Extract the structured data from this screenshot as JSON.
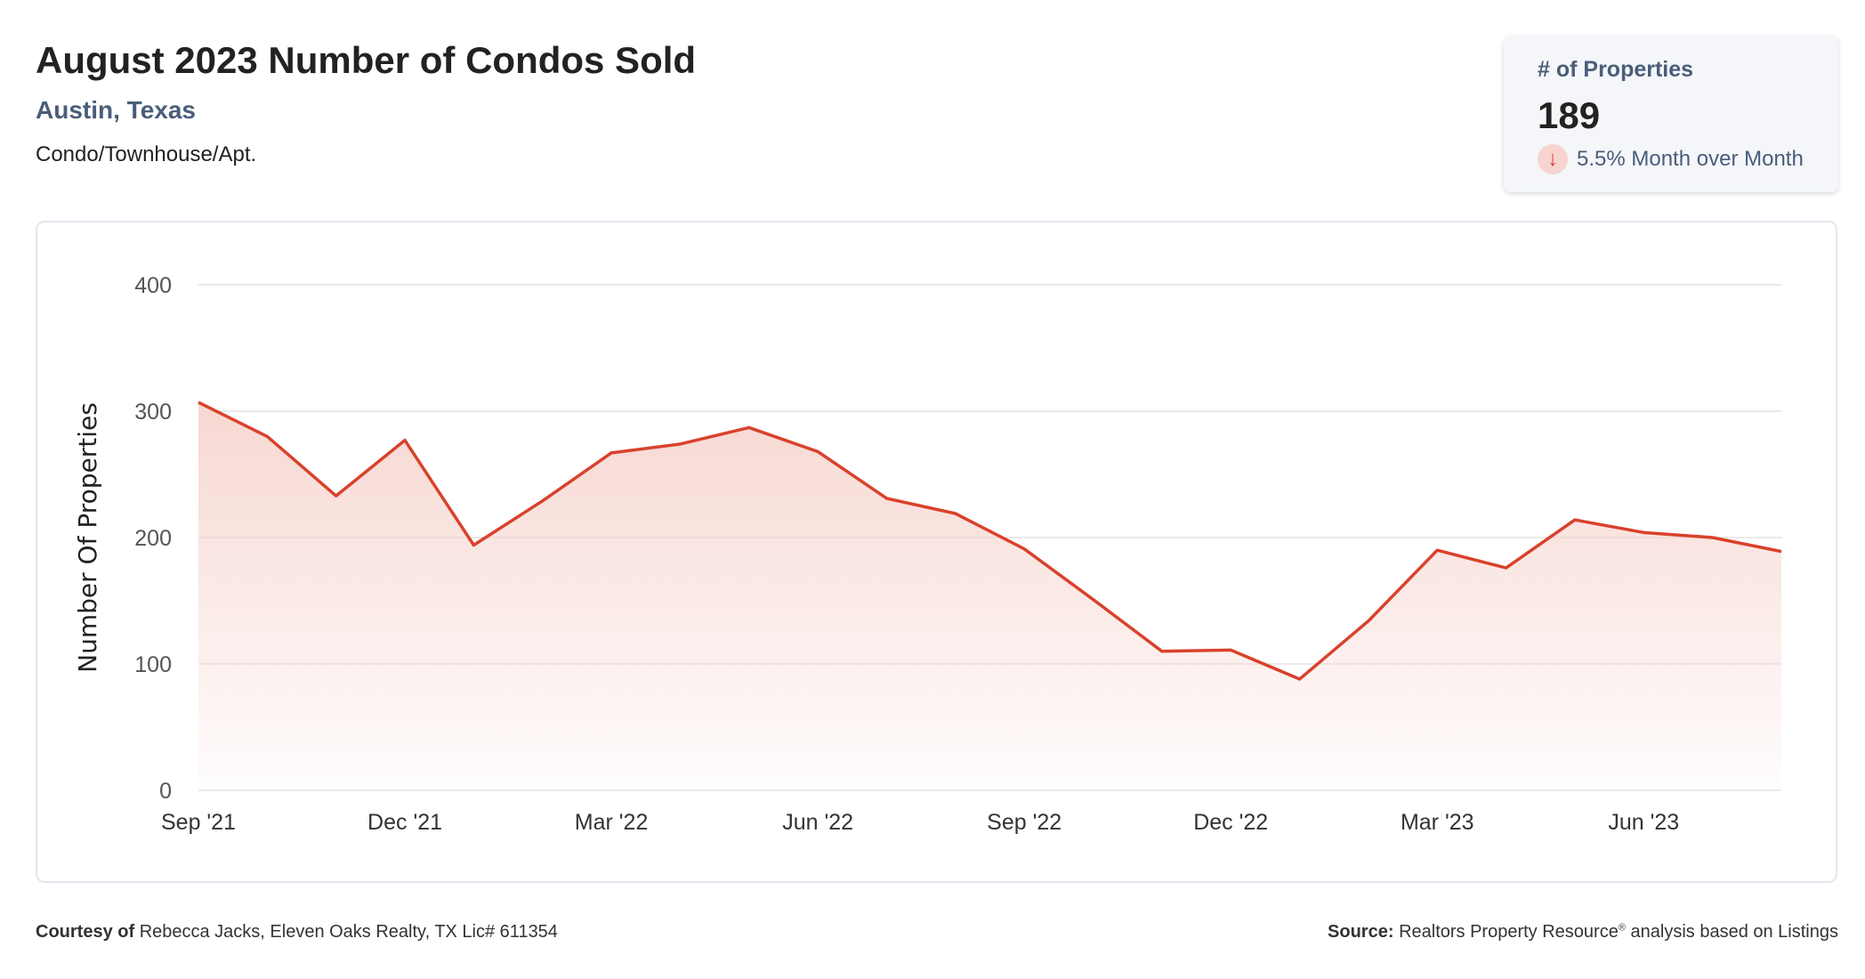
{
  "header": {
    "title": "August 2023 Number of Condos Sold",
    "location": "Austin, Texas",
    "property_type": "Condo/Townhouse/Apt."
  },
  "card": {
    "label": "# of Properties",
    "value": "189",
    "change_icon": "arrow-down-icon",
    "change": "5.5% Month over Month"
  },
  "footer": {
    "courtesy_label": "Courtesy of",
    "courtesy_text": "Rebecca Jacks, Eleven Oaks Realty, TX Lic# 611354",
    "source_label": "Source:",
    "source_text": "Realtors Property Resource",
    "source_sup": "®",
    "source_suffix": " analysis based on Listings"
  },
  "colors": {
    "line": "#d9412b",
    "fill": "#f6d3cd",
    "accent": "#4a5d79"
  },
  "chart_data": {
    "type": "area",
    "ylabel": "Number Of Properties",
    "ylim": [
      0,
      400
    ],
    "yticks": [
      0,
      100,
      200,
      300,
      400
    ],
    "grid": true,
    "xtick_labels": [
      "Sep '21",
      "Dec '21",
      "Mar '22",
      "Jun '22",
      "Sep '22",
      "Dec '22",
      "Mar '23",
      "Jun '23"
    ],
    "x": [
      "2021-09",
      "2021-10",
      "2021-11",
      "2021-12",
      "2022-01",
      "2022-02",
      "2022-03",
      "2022-04",
      "2022-05",
      "2022-06",
      "2022-07",
      "2022-08",
      "2022-09",
      "2022-10",
      "2022-11",
      "2022-12",
      "2023-01",
      "2023-02",
      "2023-03",
      "2023-04",
      "2023-05",
      "2023-06",
      "2023-07",
      "2023-08"
    ],
    "values": [
      307,
      280,
      233,
      277,
      194,
      229,
      267,
      274,
      287,
      268,
      231,
      219,
      191,
      151,
      110,
      111,
      88,
      134,
      190,
      176,
      214,
      204,
      200,
      189
    ]
  }
}
